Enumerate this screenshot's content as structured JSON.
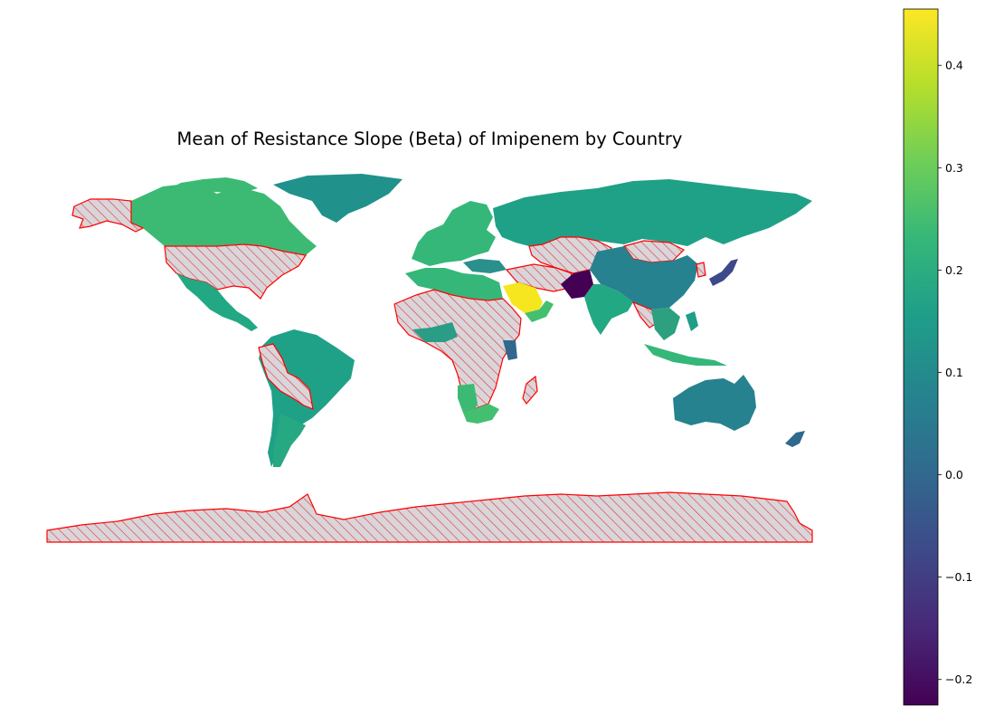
{
  "title": "Mean of Resistance Slope (Beta) of Imipenem by Country",
  "colorbar": {
    "min": -0.225,
    "max": 0.455,
    "ticks": [
      {
        "value": 0.4,
        "label": "0.4"
      },
      {
        "value": 0.3,
        "label": "0.3"
      },
      {
        "value": 0.2,
        "label": "0.2"
      },
      {
        "value": 0.1,
        "label": "0.1"
      },
      {
        "value": 0.0,
        "label": "0.0"
      },
      {
        "value": -0.1,
        "label": "−0.1"
      },
      {
        "value": -0.2,
        "label": "−0.2"
      }
    ],
    "colormap": "viridis"
  },
  "no_data_style": {
    "fill": "#d9d5da",
    "edge": "#ff0000",
    "hatch": "diagonal"
  },
  "colors": {
    "viridis": [
      "#440154",
      "#482878",
      "#3e4989",
      "#31688e",
      "#26828e",
      "#1f9e89",
      "#35b779",
      "#6ece58",
      "#b5de2b",
      "#fde725"
    ]
  }
}
